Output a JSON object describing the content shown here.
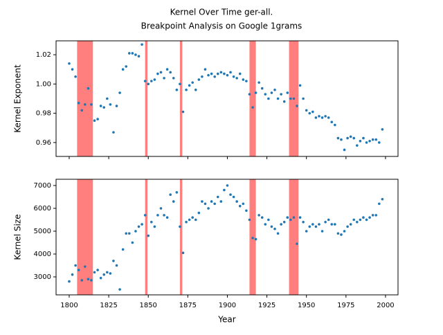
{
  "chart_data": [
    {
      "type": "scatter",
      "title": "Kernel Over Time ger-all.",
      "subtitle": "Breakpoint Analysis on Google 1grams",
      "ylabel": "Kernel Exponent",
      "xlim": [
        1791.7,
        2007.9
      ],
      "ylim": [
        0.9505,
        1.0295
      ],
      "yticks": [
        0.96,
        0.98,
        {
          "value": 1,
          "label": "1.00"
        },
        1.02
      ],
      "spans": [
        [
          1805,
          1815
        ],
        [
          1848,
          1849.5
        ],
        [
          1870,
          1871.5
        ],
        [
          1914,
          1918
        ],
        [
          1939,
          1945
        ]
      ],
      "span_color": "#ff0000",
      "x": [
        1800,
        1802,
        1804,
        1806,
        1808,
        1810,
        1812,
        1814,
        1816,
        1818,
        1820,
        1822,
        1824,
        1826,
        1828,
        1830,
        1832,
        1834,
        1836,
        1838,
        1840,
        1842,
        1844,
        1846,
        1848,
        1850,
        1852,
        1854,
        1856,
        1858,
        1860,
        1862,
        1864,
        1866,
        1868,
        1870,
        1872,
        1874,
        1876,
        1878,
        1880,
        1882,
        1884,
        1886,
        1888,
        1890,
        1892,
        1894,
        1896,
        1898,
        1900,
        1902,
        1904,
        1906,
        1908,
        1910,
        1912,
        1914,
        1916,
        1918,
        1920,
        1922,
        1924,
        1926,
        1928,
        1930,
        1932,
        1934,
        1936,
        1938,
        1940,
        1942,
        1944,
        1946,
        1948,
        1950,
        1952,
        1954,
        1956,
        1958,
        1960,
        1962,
        1964,
        1966,
        1968,
        1970,
        1972,
        1974,
        1976,
        1978,
        1980,
        1982,
        1984,
        1986,
        1988,
        1990,
        1992,
        1994,
        1996,
        1998
      ],
      "series": [
        {
          "color": "#1f77b4",
          "values": [
            1.014,
            1.01,
            1.005,
            0.987,
            0.982,
            0.986,
            0.997,
            0.986,
            0.975,
            0.976,
            0.985,
            0.984,
            0.99,
            0.986,
            0.967,
            0.985,
            0.994,
            1.01,
            1.012,
            1.021,
            1.021,
            1.02,
            1.019,
            1.027,
            1.002,
            1.0,
            1.002,
            1.003,
            1.007,
            1.008,
            1.004,
            1.01,
            1.008,
            1.004,
            0.996,
            1.0,
            0.981,
            0.996,
            0.999,
            1.001,
            0.996,
            1.003,
            1.005,
            1.01,
            1.006,
            1.007,
            1.005,
            1.007,
            1.008,
            1.007,
            1.006,
            1.008,
            1.005,
            1.004,
            1.007,
            1.003,
            1.002,
            0.993,
            0.984,
            0.994,
            1.001,
            0.997,
            0.993,
            0.99,
            0.994,
            0.996,
            0.99,
            0.993,
            0.988,
            0.994,
            0.99,
            0.99,
            0.985,
            0.999,
            0.99,
            0.982,
            0.98,
            0.981,
            0.977,
            0.978,
            0.977,
            0.978,
            0.977,
            0.974,
            0.972,
            0.963,
            0.962,
            0.955,
            0.963,
            0.964,
            0.963,
            0.958,
            0.961,
            0.963,
            0.96,
            0.961,
            0.962,
            0.962,
            0.96,
            0.969
          ]
        }
      ]
    },
    {
      "type": "scatter",
      "ylabel": "Kernel Size",
      "xlabel": "Year",
      "xlim": [
        1791.7,
        2007.9
      ],
      "ylim": [
        2212,
        7273
      ],
      "xticks": [
        1800,
        1825,
        1850,
        1875,
        1900,
        1925,
        1950,
        1975,
        2000
      ],
      "yticks": [
        3000,
        4000,
        5000,
        6000,
        7000
      ],
      "spans": [
        [
          1805,
          1815
        ],
        [
          1848,
          1849.5
        ],
        [
          1870,
          1871.5
        ],
        [
          1914,
          1918
        ],
        [
          1939,
          1945
        ]
      ],
      "span_color": "#ff0000",
      "x": [
        1800,
        1802,
        1804,
        1806,
        1808,
        1810,
        1812,
        1814,
        1816,
        1818,
        1820,
        1822,
        1824,
        1826,
        1828,
        1830,
        1832,
        1834,
        1836,
        1838,
        1840,
        1842,
        1844,
        1846,
        1848,
        1850,
        1852,
        1854,
        1856,
        1858,
        1860,
        1862,
        1864,
        1866,
        1868,
        1870,
        1872,
        1874,
        1876,
        1878,
        1880,
        1882,
        1884,
        1886,
        1888,
        1890,
        1892,
        1894,
        1896,
        1898,
        1900,
        1902,
        1904,
        1906,
        1908,
        1910,
        1912,
        1914,
        1916,
        1918,
        1920,
        1922,
        1924,
        1926,
        1928,
        1930,
        1932,
        1934,
        1936,
        1938,
        1940,
        1942,
        1944,
        1946,
        1948,
        1950,
        1952,
        1954,
        1956,
        1958,
        1960,
        1962,
        1964,
        1966,
        1968,
        1970,
        1972,
        1974,
        1976,
        1978,
        1980,
        1982,
        1984,
        1986,
        1988,
        1990,
        1992,
        1994,
        1996,
        1998
      ],
      "series": [
        {
          "color": "#1f77b4",
          "values": [
            2800,
            3100,
            3500,
            3300,
            2850,
            3450,
            2900,
            2850,
            3200,
            3300,
            2950,
            3100,
            3200,
            3150,
            3700,
            3500,
            2450,
            4200,
            4900,
            4900,
            4500,
            5000,
            5200,
            5300,
            5700,
            4800,
            5400,
            5200,
            5700,
            6000,
            5700,
            5600,
            6600,
            6300,
            6700,
            5200,
            4050,
            5400,
            5500,
            5600,
            5500,
            5800,
            6300,
            6200,
            6000,
            6300,
            6200,
            6500,
            6300,
            6800,
            7000,
            6600,
            6500,
            6300,
            6100,
            6200,
            5900,
            5500,
            4700,
            4650,
            5700,
            5600,
            5300,
            5500,
            5200,
            5100,
            4900,
            5300,
            5400,
            5600,
            5500,
            5600,
            4450,
            5600,
            5400,
            5000,
            5200,
            5300,
            5200,
            5300,
            5000,
            5400,
            5500,
            5300,
            5300,
            4900,
            4850,
            5000,
            5200,
            5300,
            5500,
            5400,
            5500,
            5600,
            5500,
            5600,
            5700,
            5700,
            6200,
            6400
          ]
        }
      ]
    }
  ]
}
